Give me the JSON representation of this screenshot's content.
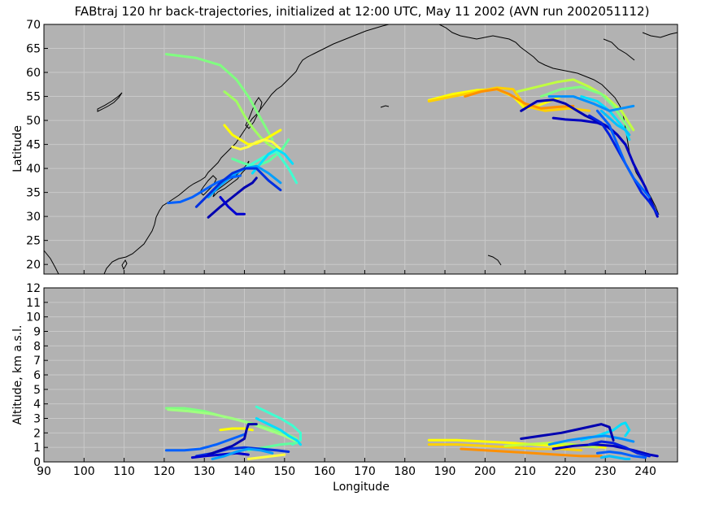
{
  "chart_data": [
    {
      "type": "line",
      "title": "FABtraj 120 hr back-trajectories, initialized at 12:00 UTC, May 11 2002 (AVN run 2002051112)",
      "xlabel": "",
      "ylabel": "Latitude",
      "xlim": [
        90,
        248
      ],
      "ylim": [
        18,
        70
      ],
      "y_ticks": [
        20,
        25,
        30,
        35,
        40,
        45,
        50,
        55,
        60,
        65,
        70
      ],
      "x_ticks": [
        90,
        100,
        110,
        120,
        130,
        140,
        150,
        160,
        170,
        180,
        190,
        200,
        210,
        220,
        230,
        240
      ],
      "grid": true,
      "background": "#b2b2b2",
      "series": [
        {
          "color": "#80ff80",
          "x": [
            120.5,
            128,
            134,
            138,
            141,
            143,
            145,
            147
          ],
          "y": [
            63.8,
            63,
            61.5,
            58.5,
            55,
            52,
            49,
            46
          ]
        },
        {
          "color": "#a0ff60",
          "x": [
            135,
            138,
            140,
            142,
            144,
            146,
            148
          ],
          "y": [
            56,
            54,
            51,
            48.5,
            46.5,
            45,
            44
          ]
        },
        {
          "color": "#ffff00",
          "x": [
            135,
            137,
            139,
            141,
            143,
            145,
            147,
            149
          ],
          "y": [
            49,
            47,
            46,
            45,
            45.2,
            46,
            47,
            48
          ]
        },
        {
          "color": "#ffff40",
          "x": [
            137,
            139,
            141,
            143,
            145,
            147,
            149
          ],
          "y": [
            44.5,
            44,
            44.5,
            45.5,
            46,
            45.5,
            44
          ]
        },
        {
          "color": "#60ffa0",
          "x": [
            137,
            140,
            143,
            146,
            149,
            151
          ],
          "y": [
            42,
            41,
            40.5,
            41.5,
            43.5,
            46
          ]
        },
        {
          "color": "#40ffd0",
          "x": [
            139,
            142,
            145,
            148,
            151,
            153
          ],
          "y": [
            39.5,
            41,
            42.5,
            43.5,
            40,
            37
          ]
        },
        {
          "color": "#00e0ff",
          "x": [
            142,
            144,
            146,
            148,
            150,
            152
          ],
          "y": [
            39,
            41,
            43,
            44,
            43,
            41
          ]
        },
        {
          "color": "#00a0ff",
          "x": [
            131,
            134,
            137,
            140,
            143,
            146,
            149
          ],
          "y": [
            34,
            36.5,
            38.5,
            40,
            40.5,
            39,
            37
          ]
        },
        {
          "color": "#0060ff",
          "x": [
            121,
            124,
            127,
            130,
            133,
            136,
            139
          ],
          "y": [
            32.8,
            33,
            34,
            35.5,
            37,
            38,
            38.5
          ]
        },
        {
          "color": "#0030e0",
          "x": [
            128,
            131,
            134,
            137,
            140,
            143,
            146,
            149
          ],
          "y": [
            32,
            34.5,
            37,
            39,
            40,
            40,
            37.5,
            35.5
          ]
        },
        {
          "color": "#0000b0",
          "x": [
            131,
            134,
            137,
            140,
            142,
            143
          ],
          "y": [
            29.8,
            32,
            34,
            36,
            37,
            38
          ]
        },
        {
          "color": "#0000d0",
          "x": [
            134,
            136,
            138,
            140
          ],
          "y": [
            34,
            32,
            30.5,
            30.5
          ]
        },
        {
          "color": "#ffff00",
          "x": [
            186,
            192,
            198,
            203,
            207,
            210,
            213,
            216,
            219
          ],
          "y": [
            54.2,
            55.5,
            56.3,
            56.5,
            55,
            52.5,
            53,
            54,
            55
          ]
        },
        {
          "color": "#ffd000",
          "x": [
            186,
            192,
            198,
            203,
            207,
            210,
            215,
            221,
            226
          ],
          "y": [
            54,
            55,
            56,
            56.8,
            56.5,
            53,
            52,
            52.5,
            52
          ]
        },
        {
          "color": "#ff9000",
          "x": [
            195,
            199,
            203,
            206,
            210,
            214,
            218,
            222
          ],
          "y": [
            55,
            56,
            56.5,
            55.5,
            53.5,
            52.5,
            52.8,
            53
          ]
        },
        {
          "color": "#c0ff40",
          "x": [
            208,
            213,
            218,
            222,
            226,
            230,
            234,
            237
          ],
          "y": [
            56,
            57,
            58,
            58.5,
            57,
            55,
            52,
            48
          ]
        },
        {
          "color": "#80ff80",
          "x": [
            214,
            219,
            224,
            229,
            232,
            234,
            236
          ],
          "y": [
            55,
            56.5,
            57,
            55.5,
            53,
            50.5,
            48
          ]
        },
        {
          "color": "#00e0ff",
          "x": [
            224,
            228,
            231,
            233,
            235,
            236
          ],
          "y": [
            55,
            54,
            52,
            50,
            48,
            46
          ]
        },
        {
          "color": "#0090ff",
          "x": [
            216,
            222,
            227,
            231,
            234,
            237
          ],
          "y": [
            55,
            55,
            53.5,
            52,
            52.5,
            53
          ]
        },
        {
          "color": "#0000b0",
          "x": [
            209,
            213,
            217,
            220,
            225,
            230,
            233,
            235
          ],
          "y": [
            52,
            54,
            54.3,
            53.5,
            51,
            49,
            47,
            45
          ]
        },
        {
          "color": "#0000c0",
          "x": [
            217,
            220,
            224,
            228,
            231,
            233,
            235,
            237,
            240,
            243
          ],
          "y": [
            50.5,
            50.2,
            50,
            49.5,
            48.5,
            47,
            45,
            41,
            36,
            30
          ]
        },
        {
          "color": "#0020e0",
          "x": [
            226,
            229,
            231,
            233,
            235,
            237,
            239,
            241,
            243
          ],
          "y": [
            51,
            49.5,
            47,
            44,
            41,
            38,
            35,
            33,
            30.5
          ]
        },
        {
          "color": "#0060ff",
          "x": [
            228,
            231,
            233,
            235,
            237,
            239,
            241
          ],
          "y": [
            52,
            49,
            45,
            41,
            38,
            36,
            34
          ]
        },
        {
          "color": "#00c0ff",
          "x": [
            229,
            231,
            233,
            235,
            236
          ],
          "y": [
            52,
            50.5,
            49,
            48,
            47
          ]
        }
      ]
    },
    {
      "type": "line",
      "title": "",
      "xlabel": "Longitude",
      "ylabel": "Altitude, km a.s.l.",
      "xlim": [
        90,
        248
      ],
      "ylim": [
        0,
        12
      ],
      "y_ticks": [
        0,
        1,
        2,
        3,
        4,
        5,
        6,
        7,
        8,
        9,
        10,
        11,
        12
      ],
      "x_ticks": [
        90,
        100,
        110,
        120,
        130,
        140,
        150,
        160,
        170,
        180,
        190,
        200,
        210,
        220,
        230,
        240
      ],
      "grid": true,
      "background": "#b2b2b2",
      "series": [
        {
          "color": "#80ff80",
          "x": [
            120.5,
            125,
            130,
            135,
            140,
            145,
            150,
            153
          ],
          "y": [
            3.7,
            3.7,
            3.5,
            3.1,
            2.8,
            2.4,
            2,
            1.6
          ]
        },
        {
          "color": "#a0ff80",
          "x": [
            121,
            126,
            132,
            137,
            142,
            146,
            150,
            153
          ],
          "y": [
            3.6,
            3.5,
            3.3,
            3.0,
            2.6,
            2.2,
            1.8,
            1.4
          ]
        },
        {
          "color": "#40ffd0",
          "x": [
            143,
            146,
            149,
            152,
            154,
            154,
            152
          ],
          "y": [
            3.8,
            3.4,
            3.0,
            2.5,
            2.0,
            1.5,
            1.2
          ]
        },
        {
          "color": "#00e0ff",
          "x": [
            143,
            146,
            149,
            151,
            153,
            154
          ],
          "y": [
            3.0,
            2.6,
            2.2,
            1.8,
            1.5,
            1.2
          ]
        },
        {
          "color": "#ffff00",
          "x": [
            134,
            137,
            140,
            142
          ],
          "y": [
            2.2,
            2.3,
            2.3,
            2.2
          ]
        },
        {
          "color": "#ffff40",
          "x": [
            141,
            144,
            147,
            150
          ],
          "y": [
            0.2,
            0.3,
            0.4,
            0.5
          ]
        },
        {
          "color": "#60ffa0",
          "x": [
            141,
            145,
            149,
            153
          ],
          "y": [
            0.8,
            1.0,
            1.2,
            1.3
          ]
        },
        {
          "color": "#0060ff",
          "x": [
            120.5,
            125,
            129,
            133,
            137,
            140
          ],
          "y": [
            0.8,
            0.8,
            0.9,
            1.2,
            1.6,
            1.9
          ]
        },
        {
          "color": "#0030e0",
          "x": [
            128,
            132,
            136,
            140,
            144,
            148,
            151
          ],
          "y": [
            0.4,
            0.6,
            0.9,
            1.0,
            0.9,
            0.8,
            0.7
          ]
        },
        {
          "color": "#0000b0",
          "x": [
            131,
            134,
            137,
            140,
            140.5,
            141,
            143
          ],
          "y": [
            0.5,
            0.8,
            1.1,
            1.6,
            2.2,
            2.6,
            2.6
          ]
        },
        {
          "color": "#0000d0",
          "x": [
            127,
            130,
            134,
            138,
            141
          ],
          "y": [
            0.3,
            0.4,
            0.5,
            0.6,
            0.5
          ]
        },
        {
          "color": "#00a0ff",
          "x": [
            132,
            135,
            138,
            141,
            144,
            147
          ],
          "y": [
            0.2,
            0.4,
            0.7,
            0.9,
            0.8,
            0.6
          ]
        },
        {
          "color": "#ffff00",
          "x": [
            186,
            193,
            200,
            207,
            212,
            218,
            224,
            230
          ],
          "y": [
            1.5,
            1.5,
            1.4,
            1.3,
            1.2,
            1.1,
            1.1,
            1.0
          ]
        },
        {
          "color": "#ffd000",
          "x": [
            186,
            193,
            200,
            207,
            213,
            219,
            224
          ],
          "y": [
            1.2,
            1.2,
            1.1,
            1.0,
            0.9,
            0.9,
            0.8
          ]
        },
        {
          "color": "#ff9000",
          "x": [
            194,
            200,
            206,
            212,
            218,
            224,
            229
          ],
          "y": [
            0.9,
            0.8,
            0.7,
            0.6,
            0.5,
            0.4,
            0.4
          ]
        },
        {
          "color": "#c0ff40",
          "x": [
            205,
            210,
            216,
            222,
            228
          ],
          "y": [
            1.1,
            1.2,
            1.3,
            1.2,
            1.0
          ]
        },
        {
          "color": "#00e0ff",
          "x": [
            224,
            228,
            232,
            234,
            235,
            236,
            235
          ],
          "y": [
            1.5,
            1.8,
            2.2,
            2.6,
            2.7,
            2.2,
            1.8
          ]
        },
        {
          "color": "#0090ff",
          "x": [
            216,
            221,
            226,
            230,
            234,
            237
          ],
          "y": [
            1.2,
            1.5,
            1.7,
            1.8,
            1.6,
            1.4
          ]
        },
        {
          "color": "#0000b0",
          "x": [
            209,
            214,
            219,
            224,
            229,
            231,
            232
          ],
          "y": [
            1.6,
            1.8,
            2.0,
            2.3,
            2.6,
            2.4,
            1.5
          ]
        },
        {
          "color": "#0000c0",
          "x": [
            217,
            222,
            227,
            232,
            237,
            241,
            243
          ],
          "y": [
            0.9,
            1.1,
            1.2,
            1.1,
            0.8,
            0.5,
            0.4
          ]
        },
        {
          "color": "#0020e0",
          "x": [
            226,
            229,
            232,
            235,
            238,
            241
          ],
          "y": [
            1.2,
            1.4,
            1.3,
            1.0,
            0.6,
            0.4
          ]
        },
        {
          "color": "#0060ff",
          "x": [
            228,
            231,
            234,
            237,
            240
          ],
          "y": [
            0.6,
            0.7,
            0.6,
            0.4,
            0.3
          ]
        },
        {
          "color": "#00c0ff",
          "x": [
            229,
            231,
            233,
            235,
            236
          ],
          "y": [
            0.3,
            0.4,
            0.3,
            0.2,
            0.2
          ]
        }
      ]
    }
  ]
}
